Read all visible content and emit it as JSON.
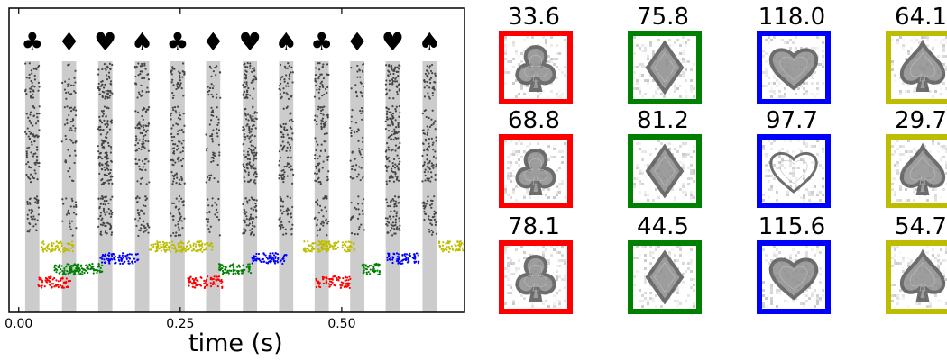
{
  "chart_data": {
    "type": "scatter",
    "description_kind": "spike raster with stimulus-conditioned neuron groups",
    "xlabel": "time (s)",
    "x_ticks": [
      0.0,
      0.25,
      0.5
    ],
    "x_tick_labels": [
      "0.00",
      "0.25",
      "0.50"
    ],
    "xlim": [
      -0.015,
      0.69
    ],
    "stimulus_symbols": [
      "♣",
      "♦",
      "♥",
      "♠",
      "♣",
      "♦",
      "♥",
      "♠",
      "♣",
      "♦",
      "♥",
      "♠"
    ],
    "stimulus_onsets": [
      0.01,
      0.067,
      0.123,
      0.18,
      0.235,
      0.29,
      0.347,
      0.403,
      0.458,
      0.513,
      0.568,
      0.625
    ],
    "stimulus_duration": 0.022,
    "bands": [
      {
        "name": "input",
        "color": "#444444"
      },
      {
        "name": "yellow",
        "color": "#bdbd00"
      },
      {
        "name": "blue",
        "color": "#0000ff"
      },
      {
        "name": "green",
        "color": "#008000"
      },
      {
        "name": "red",
        "color": "#ff0000"
      }
    ],
    "group_sequence": [
      {
        "start": 0.035,
        "end": 0.085,
        "group": "yellow"
      },
      {
        "start": 0.055,
        "end": 0.095,
        "group": "green"
      },
      {
        "start": 0.03,
        "end": 0.08,
        "group": "red"
      },
      {
        "start": 0.08,
        "end": 0.13,
        "group": "green"
      },
      {
        "start": 0.125,
        "end": 0.185,
        "group": "blue"
      },
      {
        "start": 0.2,
        "end": 0.255,
        "group": "yellow"
      },
      {
        "start": 0.245,
        "end": 0.3,
        "group": "yellow"
      },
      {
        "start": 0.26,
        "end": 0.315,
        "group": "red"
      },
      {
        "start": 0.31,
        "end": 0.36,
        "group": "green"
      },
      {
        "start": 0.36,
        "end": 0.415,
        "group": "blue"
      },
      {
        "start": 0.44,
        "end": 0.48,
        "group": "yellow"
      },
      {
        "start": 0.465,
        "end": 0.52,
        "group": "yellow"
      },
      {
        "start": 0.46,
        "end": 0.515,
        "group": "red"
      },
      {
        "start": 0.53,
        "end": 0.56,
        "group": "green"
      },
      {
        "start": 0.57,
        "end": 0.62,
        "group": "blue"
      },
      {
        "start": 0.65,
        "end": 0.69,
        "group": "yellow"
      }
    ],
    "receptive_fields": {
      "columns": [
        {
          "group": "red",
          "color": "#ff0000",
          "shape": "club",
          "values": [
            "33.6",
            "68.8",
            "78.1"
          ]
        },
        {
          "group": "green",
          "color": "#008000",
          "shape": "diamond",
          "values": [
            "75.8",
            "81.2",
            "44.5"
          ]
        },
        {
          "group": "blue",
          "color": "#0000ff",
          "shape": "heart",
          "values": [
            "118.0",
            "97.7",
            "115.6"
          ]
        },
        {
          "group": "yellow",
          "color": "#bdbd00",
          "shape": "spade",
          "values": [
            "64.1",
            "29.7",
            "54.7"
          ]
        }
      ]
    }
  }
}
